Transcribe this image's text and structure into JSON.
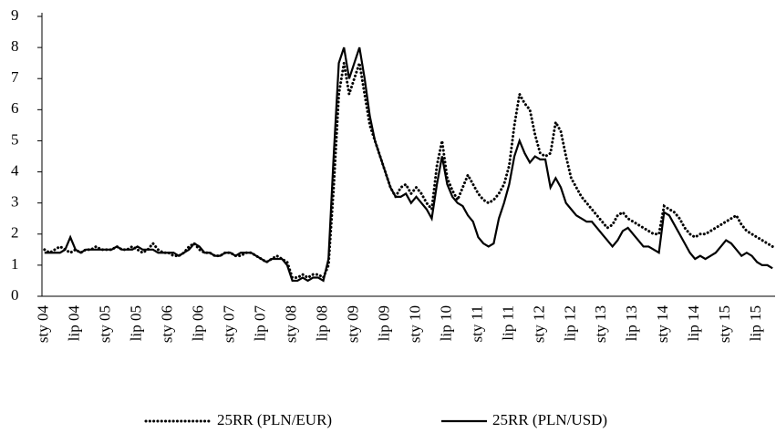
{
  "chart_data": {
    "type": "line",
    "categories": [
      "sty 04",
      null,
      null,
      null,
      null,
      null,
      "lip 04",
      null,
      null,
      null,
      null,
      null,
      "sty 05",
      null,
      null,
      null,
      null,
      null,
      "lip 05",
      null,
      null,
      null,
      null,
      null,
      "sty 06",
      null,
      null,
      null,
      null,
      null,
      "lip 06",
      null,
      null,
      null,
      null,
      null,
      "sty 07",
      null,
      null,
      null,
      null,
      null,
      "lip 07",
      null,
      null,
      null,
      null,
      null,
      "sty 08",
      null,
      null,
      null,
      null,
      null,
      "lip 08",
      null,
      null,
      null,
      null,
      null,
      "sty 09",
      null,
      null,
      null,
      null,
      null,
      "lip 09",
      null,
      null,
      null,
      null,
      null,
      "sty 10",
      null,
      null,
      null,
      null,
      null,
      "lip 10",
      null,
      null,
      null,
      null,
      null,
      "sty 11",
      null,
      null,
      null,
      null,
      null,
      "lip 11",
      null,
      null,
      null,
      null,
      null,
      "sty 12",
      null,
      null,
      null,
      null,
      null,
      "lip 12",
      null,
      null,
      null,
      null,
      null,
      "sty 13",
      null,
      null,
      null,
      null,
      null,
      "lip 13",
      null,
      null,
      null,
      null,
      null,
      "sty 14",
      null,
      null,
      null,
      null,
      null,
      "lip 14",
      null,
      null,
      null,
      null,
      null,
      "sty 15",
      null,
      null,
      null,
      null,
      null,
      "lip 15",
      null,
      null,
      null
    ],
    "series": [
      {
        "name": "25RR (PLN/EUR)",
        "color": "#000000",
        "style": "dotted",
        "values": [
          1.5,
          1.4,
          1.5,
          1.6,
          1.5,
          1.4,
          1.5,
          1.4,
          1.5,
          1.5,
          1.6,
          1.5,
          1.5,
          1.5,
          1.6,
          1.5,
          1.5,
          1.6,
          1.5,
          1.4,
          1.5,
          1.7,
          1.5,
          1.4,
          1.4,
          1.3,
          1.3,
          1.4,
          1.6,
          1.7,
          1.5,
          1.4,
          1.4,
          1.3,
          1.3,
          1.4,
          1.4,
          1.3,
          1.3,
          1.4,
          1.4,
          1.3,
          1.2,
          1.1,
          1.2,
          1.3,
          1.2,
          1.1,
          0.6,
          0.6,
          0.7,
          0.6,
          0.7,
          0.7,
          0.6,
          1.0,
          3.5,
          6.5,
          7.5,
          6.5,
          7.0,
          7.5,
          6.5,
          5.5,
          5.0,
          4.5,
          4.0,
          3.5,
          3.2,
          3.5,
          3.6,
          3.3,
          3.5,
          3.3,
          3.0,
          2.8,
          4.2,
          5.0,
          3.8,
          3.4,
          3.1,
          3.5,
          3.9,
          3.6,
          3.3,
          3.1,
          3.0,
          3.1,
          3.3,
          3.6,
          4.2,
          5.5,
          6.5,
          6.2,
          6.0,
          5.2,
          4.6,
          4.5,
          4.6,
          5.6,
          5.3,
          4.5,
          3.8,
          3.5,
          3.2,
          3.0,
          2.8,
          2.6,
          2.4,
          2.2,
          2.3,
          2.6,
          2.7,
          2.5,
          2.4,
          2.3,
          2.2,
          2.1,
          2.0,
          2.0,
          2.9,
          2.8,
          2.7,
          2.5,
          2.2,
          2.0,
          1.9,
          2.0,
          2.0,
          2.1,
          2.2,
          2.3,
          2.4,
          2.5,
          2.6,
          2.3,
          2.1,
          2.0,
          1.9,
          1.8,
          1.7,
          1.6
        ]
      },
      {
        "name": "25RR (PLN/USD)",
        "color": "#000000",
        "style": "solid",
        "values": [
          1.4,
          1.4,
          1.4,
          1.4,
          1.5,
          1.9,
          1.5,
          1.4,
          1.5,
          1.5,
          1.5,
          1.5,
          1.5,
          1.5,
          1.6,
          1.5,
          1.5,
          1.5,
          1.6,
          1.5,
          1.5,
          1.5,
          1.4,
          1.4,
          1.4,
          1.4,
          1.3,
          1.4,
          1.5,
          1.7,
          1.6,
          1.4,
          1.4,
          1.3,
          1.3,
          1.4,
          1.4,
          1.3,
          1.4,
          1.4,
          1.4,
          1.3,
          1.2,
          1.1,
          1.2,
          1.2,
          1.2,
          1.0,
          0.5,
          0.5,
          0.6,
          0.5,
          0.6,
          0.6,
          0.5,
          1.2,
          4.5,
          7.5,
          8.0,
          7.0,
          7.5,
          8.0,
          7.0,
          5.8,
          5.0,
          4.5,
          4.0,
          3.5,
          3.2,
          3.2,
          3.3,
          3.0,
          3.2,
          3.0,
          2.8,
          2.5,
          3.6,
          4.5,
          3.6,
          3.2,
          3.0,
          2.9,
          2.6,
          2.4,
          1.9,
          1.7,
          1.6,
          1.7,
          2.5,
          3.0,
          3.6,
          4.5,
          5.0,
          4.6,
          4.3,
          4.5,
          4.4,
          4.4,
          3.5,
          3.8,
          3.5,
          3.0,
          2.8,
          2.6,
          2.5,
          2.4,
          2.4,
          2.2,
          2.0,
          1.8,
          1.6,
          1.8,
          2.1,
          2.2,
          2.0,
          1.8,
          1.6,
          1.6,
          1.5,
          1.4,
          2.7,
          2.6,
          2.3,
          2.0,
          1.7,
          1.4,
          1.2,
          1.3,
          1.2,
          1.3,
          1.4,
          1.6,
          1.8,
          1.7,
          1.5,
          1.3,
          1.4,
          1.3,
          1.1,
          1.0,
          1.0,
          0.9
        ]
      }
    ],
    "ylim": [
      0,
      9
    ],
    "yticks": [
      0,
      1,
      2,
      3,
      4,
      5,
      6,
      7,
      8,
      9
    ],
    "grid": false,
    "legend": "bottom"
  }
}
